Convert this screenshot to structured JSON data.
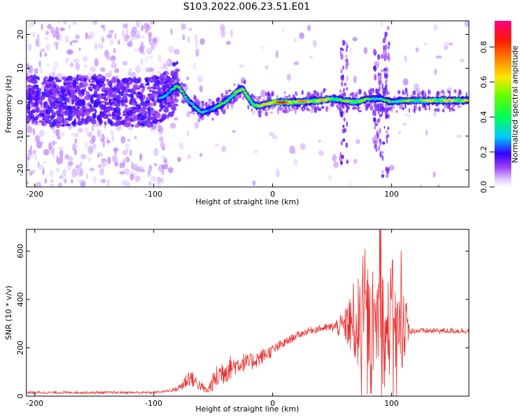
{
  "title": "S103.2022.006.23.51.E01",
  "chart_data": [
    {
      "type": "heatmap",
      "xlabel": "Height of straight line (km)",
      "ylabel": "Frequency (Hz)",
      "xlim": [
        -207,
        165
      ],
      "ylim": [
        -25,
        24
      ],
      "xticks": [
        -200,
        -100,
        0,
        100
      ],
      "yticks": [
        -20,
        -10,
        0,
        10,
        20
      ],
      "colorbar": {
        "label": "Normalized spectral amplitude",
        "range": [
          0,
          0.95
        ],
        "ticks": [
          0.0,
          0.2,
          0.4,
          0.6,
          0.8
        ]
      },
      "ridge": {
        "x": [
          -207,
          -180,
          -150,
          -120,
          -100,
          -90,
          -80,
          -70,
          -60,
          -50,
          -40,
          -30,
          -25,
          -20,
          -15,
          -10,
          0,
          20,
          40,
          50,
          60,
          70,
          80,
          90,
          100,
          110,
          140,
          165
        ],
        "freq": [
          1,
          0,
          1,
          0,
          0,
          2,
          5,
          0,
          -3,
          -2,
          0,
          3,
          4,
          1,
          -1,
          -1,
          0,
          0,
          0.5,
          1,
          0.5,
          0,
          1,
          1,
          0,
          0.5,
          0.5,
          0.5
        ],
        "amplitude": [
          0.1,
          0.1,
          0.1,
          0.1,
          0.15,
          0.4,
          0.5,
          0.45,
          0.35,
          0.4,
          0.5,
          0.6,
          0.55,
          0.6,
          0.6,
          0.6,
          0.95,
          0.8,
          0.75,
          0.6,
          0.55,
          0.7,
          0.5,
          0.45,
          0.5,
          0.55,
          0.7,
          0.7
        ]
      }
    },
    {
      "type": "line",
      "xlabel": "Height of straight line (km)",
      "ylabel": "SNR (10 * v/v)",
      "xlim": [
        -207,
        165
      ],
      "ylim": [
        0,
        690
      ],
      "xticks": [
        -200,
        -100,
        0,
        100
      ],
      "yticks": [
        0,
        200,
        400,
        600
      ],
      "color": "#e8302e",
      "series": [
        {
          "x": [
            -207,
            -180,
            -150,
            -120,
            -100,
            -90,
            -80,
            -75,
            -70,
            -65,
            -60,
            -55,
            -50,
            -45,
            -40,
            -35,
            -30,
            -25,
            -20,
            -15,
            -10,
            -5,
            0,
            10,
            20,
            30,
            40,
            50,
            60,
            65,
            70,
            75,
            80,
            85,
            90,
            95,
            100,
            105,
            110,
            115,
            120,
            130,
            140,
            150,
            165
          ],
          "y": [
            15,
            15,
            15,
            15,
            15,
            20,
            30,
            50,
            80,
            60,
            40,
            20,
            60,
            90,
            110,
            120,
            130,
            140,
            135,
            150,
            160,
            175,
            190,
            220,
            250,
            270,
            280,
            285,
            290,
            300,
            310,
            280,
            330,
            250,
            380,
            220,
            350,
            260,
            320,
            270,
            270,
            270,
            270,
            270,
            270
          ],
          "spread": [
            5,
            5,
            5,
            5,
            5,
            5,
            10,
            30,
            40,
            30,
            20,
            15,
            40,
            60,
            60,
            50,
            40,
            40,
            40,
            35,
            35,
            30,
            25,
            20,
            15,
            15,
            15,
            20,
            60,
            120,
            200,
            180,
            200,
            150,
            300,
            200,
            250,
            180,
            200,
            15,
            12,
            12,
            12,
            12,
            12
          ]
        }
      ]
    }
  ]
}
